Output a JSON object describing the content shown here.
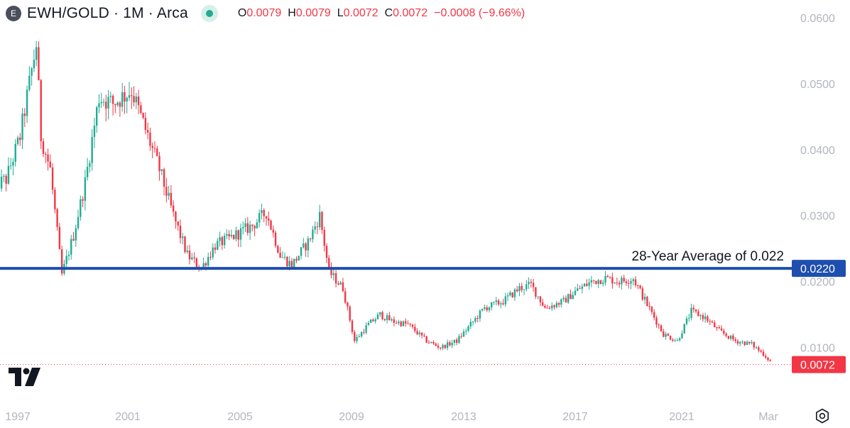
{
  "header": {
    "badge": "E",
    "title": "EWH/GOLD · 1M · Arca",
    "open_label": "O",
    "open_value": "0.0079",
    "high_label": "H",
    "high_value": "0.0079",
    "low_label": "L",
    "low_value": "0.0072",
    "close_label": "C",
    "close_value": "0.0072",
    "change": "−0.0008 (−9.66%)"
  },
  "icons": {
    "logo": "tradingview-logo-icon",
    "settings": "settings-icon",
    "status": "status-dot-icon"
  },
  "colors": {
    "up": "#22ab94",
    "down": "#f23645",
    "average_line": "#1e4fae",
    "axis_text": "#b2b5be"
  },
  "chart_data": {
    "type": "candlestick",
    "title": "",
    "y_ticks": [
      "0.0100",
      "0.0200",
      "0.0300",
      "0.0400",
      "0.0500",
      "0.0600"
    ],
    "x_ticks": [
      "1997",
      "2001",
      "2005",
      "2009",
      "2013",
      "2017",
      "2021",
      "Mar"
    ],
    "ylim": [
      0.0,
      0.06
    ],
    "anchors": [
      [
        "1996-03",
        0.0345
      ],
      [
        "1996-08",
        0.0355
      ],
      [
        "1997-02",
        0.042
      ],
      [
        "1997-06",
        0.05
      ],
      [
        "1997-09",
        0.056
      ],
      [
        "1997-11",
        0.042
      ],
      [
        "1998-03",
        0.037
      ],
      [
        "1998-08",
        0.021
      ],
      [
        "1999-01",
        0.027
      ],
      [
        "1999-06",
        0.035
      ],
      [
        "1999-12",
        0.048
      ],
      [
        "2000-06",
        0.047
      ],
      [
        "2001-02",
        0.049
      ],
      [
        "2001-08",
        0.043
      ],
      [
        "2002-02",
        0.037
      ],
      [
        "2002-08",
        0.03
      ],
      [
        "2003-02",
        0.024
      ],
      [
        "2003-08",
        0.022
      ],
      [
        "2004-02",
        0.0255
      ],
      [
        "2004-08",
        0.0265
      ],
      [
        "2005-06",
        0.0285
      ],
      [
        "2005-12",
        0.0305
      ],
      [
        "2006-06",
        0.024
      ],
      [
        "2006-11",
        0.0225
      ],
      [
        "2007-06",
        0.026
      ],
      [
        "2007-11",
        0.03
      ],
      [
        "2008-03",
        0.0215
      ],
      [
        "2008-09",
        0.019
      ],
      [
        "2009-02",
        0.011
      ],
      [
        "2009-08",
        0.0135
      ],
      [
        "2010-01",
        0.015
      ],
      [
        "2010-06",
        0.014
      ],
      [
        "2011-01",
        0.0135
      ],
      [
        "2011-09",
        0.011
      ],
      [
        "2012-03",
        0.01
      ],
      [
        "2012-10",
        0.011
      ],
      [
        "2013-04",
        0.0135
      ],
      [
        "2013-10",
        0.016
      ],
      [
        "2014-06",
        0.017
      ],
      [
        "2015-01",
        0.019
      ],
      [
        "2015-06",
        0.0195
      ],
      [
        "2015-12",
        0.016
      ],
      [
        "2016-08",
        0.017
      ],
      [
        "2017-01",
        0.0185
      ],
      [
        "2017-08",
        0.02
      ],
      [
        "2018-02",
        0.0205
      ],
      [
        "2018-08",
        0.02
      ],
      [
        "2019-02",
        0.0205
      ],
      [
        "2019-08",
        0.0165
      ],
      [
        "2020-03",
        0.012
      ],
      [
        "2020-09",
        0.011
      ],
      [
        "2021-03",
        0.0155
      ],
      [
        "2021-09",
        0.0145
      ],
      [
        "2022-03",
        0.0125
      ],
      [
        "2022-10",
        0.011
      ],
      [
        "2023-05",
        0.0105
      ],
      [
        "2023-10",
        0.009
      ],
      [
        "2024-03",
        0.0072
      ]
    ],
    "average_line": {
      "value": 0.022,
      "label": "28-Year Average of 0.022",
      "axis_label": "0.0220"
    },
    "last_price": {
      "value": 0.0072,
      "axis_label": "0.0072"
    }
  }
}
